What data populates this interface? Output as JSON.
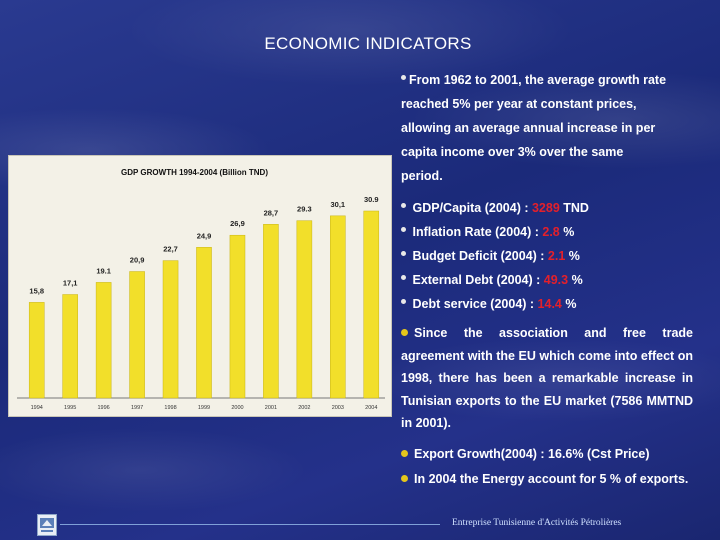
{
  "slide": {
    "title": "ECONOMIC INDICATORS",
    "intro_lines": [
      "From 1962 to 2001, the average growth rate",
      "reached 5% per year at constant prices,",
      "allowing an average annual increase in per",
      "capita income over 3% over the same",
      "period."
    ],
    "indicators": [
      {
        "label": "GDP/Capita (2004) : ",
        "value": "3289",
        "unit": " TND"
      },
      {
        "label": "Inflation Rate (2004) : ",
        "value": "2.8",
        "unit": " %"
      },
      {
        "label": "Budget Deficit (2004) : ",
        "value": "2.1",
        "unit": " %"
      },
      {
        "label": "External Debt  (2004) : ",
        "value": "49.3",
        "unit": " %"
      },
      {
        "label": "Debt service  (2004) : ",
        "value": "14.4",
        "unit": " %"
      }
    ],
    "association_text": "Since the association and free trade agreement with the EU which come into effect on 1998, there has been a remarkable increase in Tunisian exports to the EU market (7586 MMTND in 2001).",
    "export_growth": "Export Growth(2004) : 16.6%  (Cst Price)",
    "energy_text": "In 2004 the Energy account for 5 % of exports.",
    "footer": "Entreprise Tunisienne d'Activités Pétrolières",
    "colors": {
      "background": "#1e2a78",
      "highlight": "#e3202b",
      "bar": "#f2df2a",
      "bullet": "#e4c61c"
    }
  },
  "chart_data": {
    "type": "bar",
    "title": "GDP GROWTH 1994-2004  (Billion TND)",
    "categories": [
      "1994",
      "1995",
      "1996",
      "1997",
      "1998",
      "1999",
      "2000",
      "2001",
      "2002",
      "2003",
      "2004"
    ],
    "values": [
      15.8,
      17.1,
      19.1,
      20.9,
      22.7,
      24.9,
      26.9,
      28.7,
      29.3,
      30.1,
      30.9
    ],
    "value_labels": [
      "15,8",
      "17,1",
      "19.1",
      "20,9",
      "22,7",
      "24,9",
      "26,9",
      "28,7",
      "29.3",
      "30,1",
      "30.9"
    ],
    "ylim": [
      0,
      30.9
    ],
    "grid": false
  }
}
